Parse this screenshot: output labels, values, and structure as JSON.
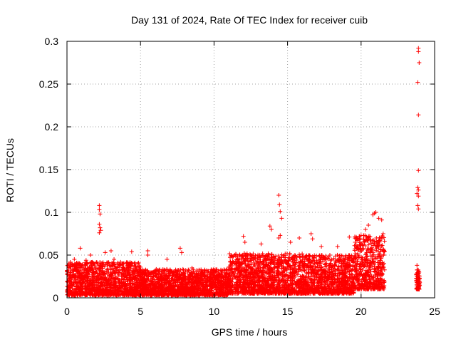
{
  "chart_data": {
    "type": "scatter",
    "title": "Day 131 of 2024, Rate Of TEC Index for receiver cuib",
    "xlabel": "GPS time / hours",
    "ylabel": "ROTI / TECUs",
    "xlim": [
      0,
      25
    ],
    "ylim": [
      0,
      0.3
    ],
    "xticks": [
      0,
      5,
      10,
      15,
      20,
      25
    ],
    "yticks": [
      0,
      0.05,
      0.1,
      0.15,
      0.2,
      0.25,
      0.3
    ],
    "xtick_labels": [
      "0",
      "5",
      "10",
      "15",
      "20",
      "25"
    ],
    "ytick_labels": [
      "0",
      "0.05",
      "0.1",
      "0.15",
      "0.2",
      "0.25",
      "0.3"
    ],
    "grid": true,
    "marker": "+",
    "color": "#ff0000",
    "series": [
      {
        "name": "ROTI",
        "points": [
          [
            2.2,
            0.108
          ],
          [
            2.2,
            0.103
          ],
          [
            2.25,
            0.098
          ],
          [
            2.2,
            0.086
          ],
          [
            2.25,
            0.082
          ],
          [
            2.3,
            0.079
          ],
          [
            2.2,
            0.076
          ],
          [
            0.5,
            0.045
          ],
          [
            0.9,
            0.058
          ],
          [
            1.3,
            0.044
          ],
          [
            1.6,
            0.05
          ],
          [
            2.6,
            0.053
          ],
          [
            3.0,
            0.055
          ],
          [
            3.2,
            0.045
          ],
          [
            4.4,
            0.054
          ],
          [
            5.5,
            0.055
          ],
          [
            5.5,
            0.05
          ],
          [
            6.8,
            0.045
          ],
          [
            7.7,
            0.058
          ],
          [
            7.8,
            0.053
          ],
          [
            8.5,
            0.035
          ],
          [
            12.0,
            0.072
          ],
          [
            12.1,
            0.065
          ],
          [
            12.5,
            0.05
          ],
          [
            13.2,
            0.063
          ],
          [
            13.8,
            0.084
          ],
          [
            13.9,
            0.08
          ],
          [
            14.4,
            0.12
          ],
          [
            14.45,
            0.109
          ],
          [
            14.5,
            0.101
          ],
          [
            14.6,
            0.093
          ],
          [
            14.5,
            0.073
          ],
          [
            14.4,
            0.07
          ],
          [
            15.2,
            0.065
          ],
          [
            15.8,
            0.07
          ],
          [
            16.6,
            0.075
          ],
          [
            16.7,
            0.069
          ],
          [
            17.3,
            0.06
          ],
          [
            18.4,
            0.06
          ],
          [
            19.2,
            0.071
          ],
          [
            19.6,
            0.065
          ],
          [
            20.0,
            0.073
          ],
          [
            20.3,
            0.08
          ],
          [
            20.5,
            0.085
          ],
          [
            20.8,
            0.097
          ],
          [
            20.9,
            0.099
          ],
          [
            21.0,
            0.1
          ],
          [
            21.2,
            0.093
          ],
          [
            21.4,
            0.091
          ],
          [
            21.5,
            0.075
          ],
          [
            23.9,
            0.292
          ],
          [
            23.9,
            0.288
          ],
          [
            23.95,
            0.275
          ],
          [
            23.85,
            0.252
          ],
          [
            23.9,
            0.214
          ],
          [
            23.9,
            0.149
          ],
          [
            23.85,
            0.129
          ],
          [
            23.9,
            0.126
          ],
          [
            23.8,
            0.122
          ],
          [
            23.9,
            0.119
          ],
          [
            23.85,
            0.108
          ],
          [
            23.9,
            0.104
          ],
          [
            23.8,
            0.038
          ],
          [
            23.9,
            0.031
          ],
          [
            23.85,
            0.027
          ],
          [
            23.9,
            0.023
          ],
          [
            23.8,
            0.02
          ],
          [
            23.95,
            0.016
          ],
          [
            23.9,
            0.011
          ]
        ],
        "dense_band": {
          "segments": [
            {
              "x_from": 0,
              "x_to": 5,
              "y_floor": 0.003,
              "y_typical_max": 0.04
            },
            {
              "x_from": 5,
              "x_to": 11,
              "y_floor": 0.003,
              "y_typical_max": 0.032
            },
            {
              "x_from": 11,
              "x_to": 16,
              "y_floor": 0.005,
              "y_typical_max": 0.05
            },
            {
              "x_from": 16,
              "x_to": 19.5,
              "y_floor": 0.005,
              "y_typical_max": 0.048
            },
            {
              "x_from": 19.5,
              "x_to": 21.6,
              "y_floor": 0.01,
              "y_typical_max": 0.07
            },
            {
              "x_from": 23.75,
              "x_to": 24.0,
              "y_floor": 0.01,
              "y_typical_max": 0.032
            }
          ]
        }
      }
    ]
  }
}
